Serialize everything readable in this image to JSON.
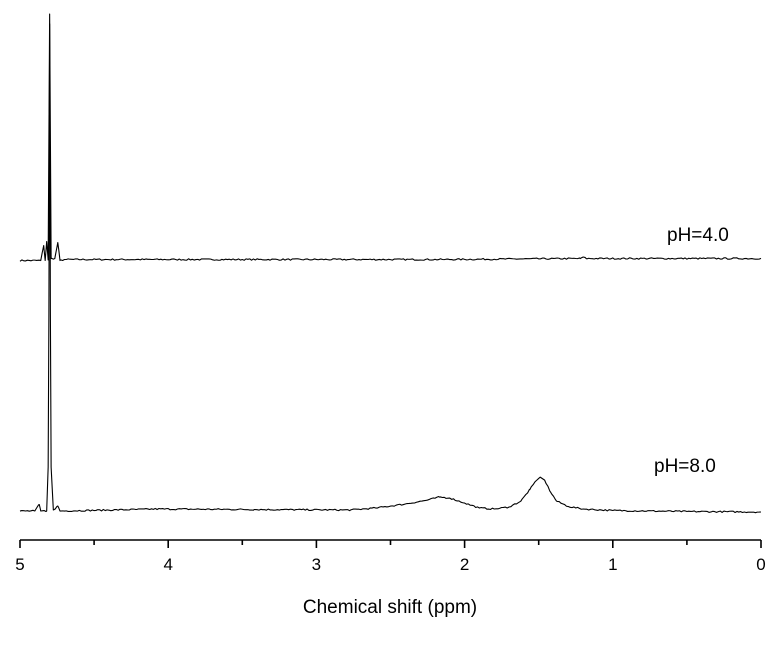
{
  "chart_data": {
    "type": "line",
    "title": "",
    "xlabel": "Chemical shift (ppm)",
    "ylabel": "",
    "xlim": [
      5,
      0
    ],
    "x_reversed": true,
    "ylim": [
      0,
      1
    ],
    "y_axis_visible": false,
    "grid": false,
    "ticks": {
      "major": [
        5,
        4,
        3,
        2,
        1,
        0
      ],
      "major_labels": [
        "5",
        "4",
        "3",
        "2",
        "1",
        "0"
      ],
      "minor": [
        4.5,
        3.5,
        2.5,
        1.5,
        0.5
      ]
    },
    "series": [
      {
        "name": "pH=4.0",
        "baseline": 0.505,
        "points": [
          [
            4.86,
            0
          ],
          [
            4.84,
            0.03
          ],
          [
            4.83,
            0
          ],
          [
            4.82,
            0.038
          ],
          [
            4.81,
            0.001
          ],
          [
            4.8,
            0.495
          ],
          [
            4.79,
            0.004
          ],
          [
            4.765,
            0.004
          ],
          [
            4.745,
            0.036
          ],
          [
            4.73,
            0
          ],
          [
            4.7,
            0.002
          ],
          [
            3.95,
            0.002
          ],
          [
            2.15,
            0.002
          ],
          [
            1.22,
            0.004
          ],
          [
            1.2,
            0.007
          ],
          [
            1.18,
            0.004
          ]
        ]
      },
      {
        "name": "pH=8.0",
        "baseline": 0.0,
        "points": [
          [
            4.9,
            0.002
          ],
          [
            4.87,
            0.015
          ],
          [
            4.86,
            0.002
          ],
          [
            4.82,
            0.002
          ],
          [
            4.81,
            0.09
          ],
          [
            4.805,
            0.4
          ],
          [
            4.8,
            0.98
          ],
          [
            4.795,
            0.4
          ],
          [
            4.79,
            0.09
          ],
          [
            4.775,
            0.004
          ],
          [
            4.745,
            0.012
          ],
          [
            4.73,
            0.002
          ],
          [
            4.22,
            0.005
          ],
          [
            4.08,
            0.006
          ],
          [
            3.42,
            0.005
          ],
          [
            2.77,
            0.004
          ],
          [
            2.6,
            0.008
          ],
          [
            2.4,
            0.016
          ],
          [
            2.25,
            0.024
          ],
          [
            2.17,
            0.03
          ],
          [
            2.1,
            0.028
          ],
          [
            2.0,
            0.018
          ],
          [
            1.9,
            0.008
          ],
          [
            1.8,
            0.006
          ],
          [
            1.7,
            0.01
          ],
          [
            1.62,
            0.022
          ],
          [
            1.56,
            0.045
          ],
          [
            1.52,
            0.062
          ],
          [
            1.49,
            0.07
          ],
          [
            1.46,
            0.064
          ],
          [
            1.42,
            0.04
          ],
          [
            1.38,
            0.022
          ],
          [
            1.3,
            0.011
          ],
          [
            1.2,
            0.006
          ],
          [
            1.0,
            0.003
          ],
          [
            0.5,
            0.001
          ],
          [
            0.0,
            0.0
          ]
        ]
      }
    ]
  }
}
